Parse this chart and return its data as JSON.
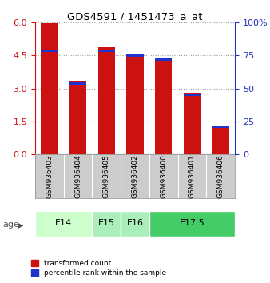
{
  "title": "GDS4591 / 1451473_a_at",
  "samples": [
    "GSM936403",
    "GSM936404",
    "GSM936405",
    "GSM936402",
    "GSM936400",
    "GSM936401",
    "GSM936406"
  ],
  "red_values": [
    5.97,
    3.35,
    4.88,
    4.55,
    4.42,
    2.82,
    1.32
  ],
  "blue_bottoms": [
    4.65,
    3.18,
    4.65,
    4.45,
    4.28,
    2.65,
    1.2
  ],
  "blue_heights": [
    0.13,
    0.1,
    0.13,
    0.12,
    0.13,
    0.13,
    0.1
  ],
  "age_groups": [
    {
      "label": "E14",
      "span": [
        0,
        2
      ],
      "color": "#ccffcc"
    },
    {
      "label": "E15",
      "span": [
        2,
        3
      ],
      "color": "#aaeebb"
    },
    {
      "label": "E16",
      "span": [
        3,
        4
      ],
      "color": "#aaeebb"
    },
    {
      "label": "E17.5",
      "span": [
        4,
        7
      ],
      "color": "#44cc66"
    }
  ],
  "ylim_left": [
    0,
    6
  ],
  "ylim_right": [
    0,
    100
  ],
  "yticks_left": [
    0,
    1.5,
    3,
    4.5,
    6
  ],
  "yticks_right": [
    0,
    25,
    50,
    75,
    100
  ],
  "ytick_labels_right": [
    "0",
    "25",
    "50",
    "75",
    "100%"
  ],
  "bar_color_red": "#cc1111",
  "bar_color_blue": "#2233cc",
  "bar_width": 0.6,
  "bg_color": "#ffffff",
  "left_axis_color": "#cc1111",
  "right_axis_color": "#2233bb",
  "sample_bg": "#cccccc",
  "grid_color": "#999999"
}
